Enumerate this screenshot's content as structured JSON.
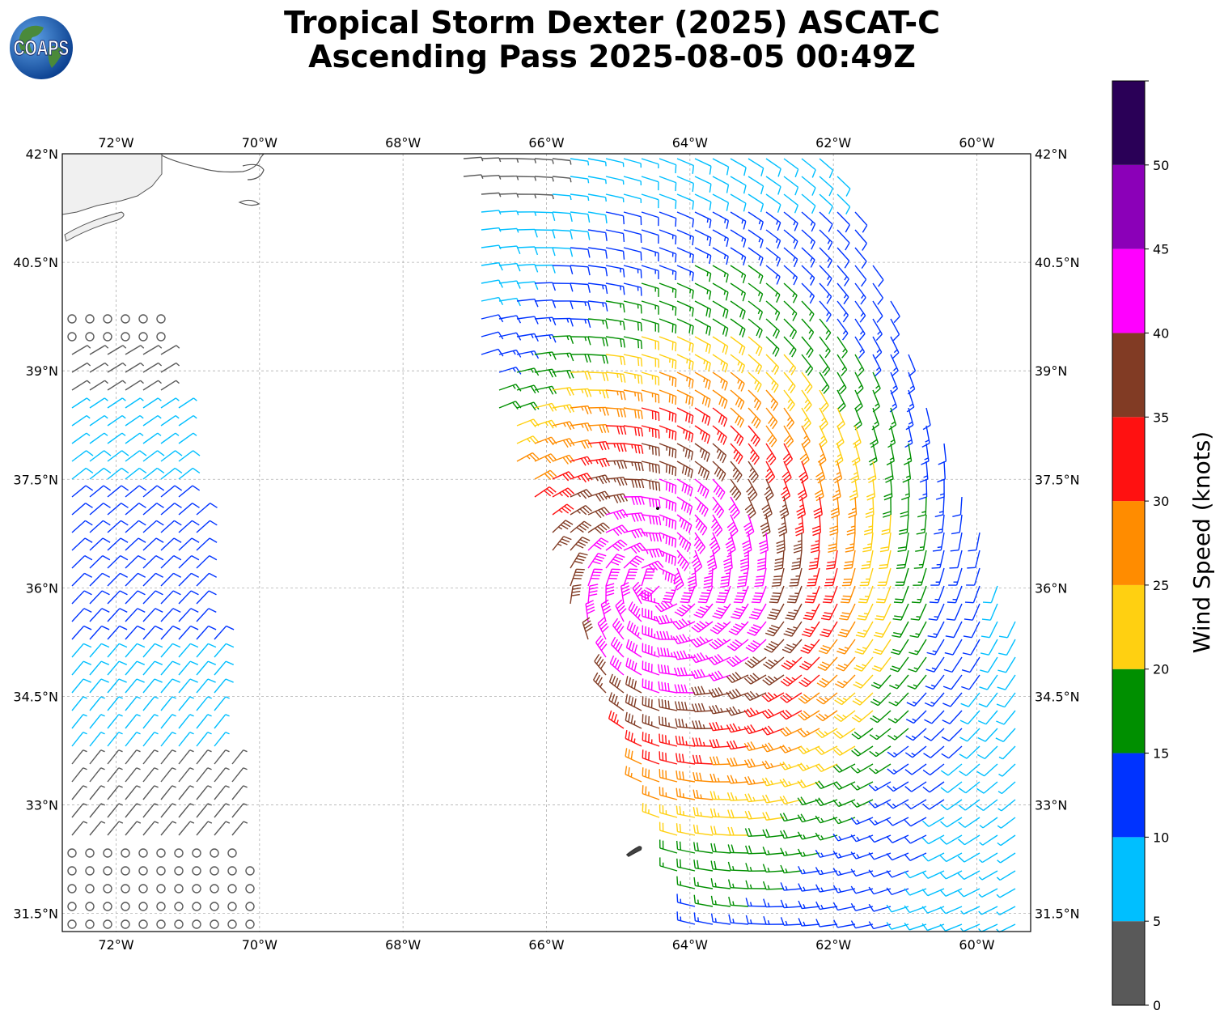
{
  "title": {
    "line1": "Tropical Storm Dexter (2025) ASCAT-C",
    "line2": "Ascending Pass 2025-08-05 00:49Z"
  },
  "logo": {
    "text": "COAPS",
    "icon": "globe-icon"
  },
  "map": {
    "extent": {
      "lon_min": -72.75,
      "lon_max": -59.25,
      "lat_min": 31.25,
      "lat_max": 42.0
    },
    "lon_ticks": [
      {
        "lon": -72,
        "label": "72°W"
      },
      {
        "lon": -70,
        "label": "70°W"
      },
      {
        "lon": -68,
        "label": "68°W"
      },
      {
        "lon": -66,
        "label": "66°W"
      },
      {
        "lon": -64,
        "label": "64°W"
      },
      {
        "lon": -62,
        "label": "62°W"
      },
      {
        "lon": -60,
        "label": "60°W"
      }
    ],
    "lat_ticks": [
      {
        "lat": 42.0,
        "label": "42°N"
      },
      {
        "lat": 40.5,
        "label": "40.5°N"
      },
      {
        "lat": 39.0,
        "label": "39°N"
      },
      {
        "lat": 37.5,
        "label": "37.5°N"
      },
      {
        "lat": 36.0,
        "label": "36°N"
      },
      {
        "lat": 34.5,
        "label": "34.5°N"
      },
      {
        "lat": 33.0,
        "label": "33°N"
      },
      {
        "lat": 31.5,
        "label": "31.5°N"
      }
    ],
    "grid": true,
    "storm_center": {
      "lon": -64.45,
      "lat": 37.1
    },
    "swaths": [
      {
        "name": "west",
        "corners": [
          [
            -72.75,
            39.8
          ],
          [
            -71.3,
            39.8
          ],
          [
            -70.0,
            31.25
          ],
          [
            -72.75,
            31.25
          ]
        ]
      },
      {
        "name": "east",
        "corners": [
          [
            -67.2,
            42.0
          ],
          [
            -62.0,
            42.0
          ],
          [
            -59.25,
            35.0
          ],
          [
            -59.25,
            31.25
          ],
          [
            -63.9,
            31.25
          ],
          [
            -66.9,
            38.9
          ]
        ]
      }
    ]
  },
  "colorbar": {
    "label": "Wind Speed (knots)",
    "ticks": [
      "0",
      "5",
      "10",
      "15",
      "20",
      "25",
      "30",
      "35",
      "40",
      "45",
      "50"
    ],
    "tick_values": [
      0,
      5,
      10,
      15,
      20,
      25,
      30,
      35,
      40,
      45,
      50
    ],
    "vmax": 55,
    "bins": [
      {
        "min": 0,
        "max": 5,
        "color": "#595959"
      },
      {
        "min": 5,
        "max": 10,
        "color": "#00bfff"
      },
      {
        "min": 10,
        "max": 15,
        "color": "#0033ff"
      },
      {
        "min": 15,
        "max": 20,
        "color": "#008f00"
      },
      {
        "min": 20,
        "max": 25,
        "color": "#ffd011"
      },
      {
        "min": 25,
        "max": 30,
        "color": "#ff8c00"
      },
      {
        "min": 30,
        "max": 35,
        "color": "#ff1111"
      },
      {
        "min": 35,
        "max": 40,
        "color": "#813b24"
      },
      {
        "min": 40,
        "max": 45,
        "color": "#ff00ff"
      },
      {
        "min": 45,
        "max": 50,
        "color": "#8b00b8"
      },
      {
        "min": 50,
        "max": 55,
        "color": "#2a0057"
      }
    ]
  }
}
